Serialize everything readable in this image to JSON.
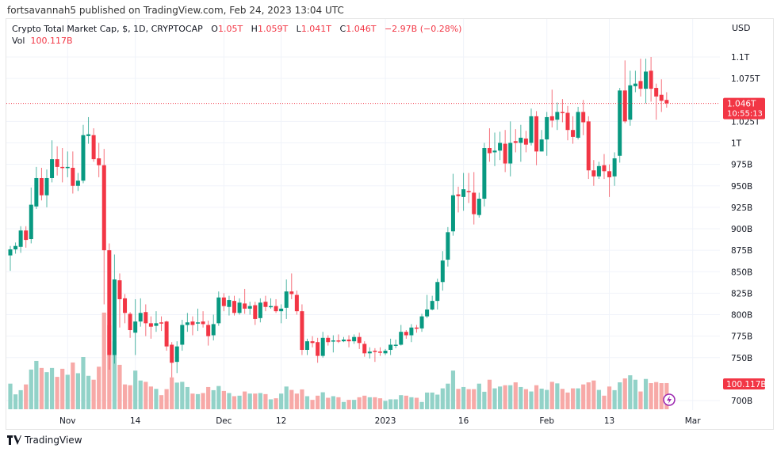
{
  "publisher_line": "fortsavannah5 published on TradingView.com, Feb 24, 2023 13:04 UTC",
  "legend": {
    "symbol": "Crypto Total Market Cap, $, 1D, CRYPTOCAP",
    "o_label": "O",
    "o": "1.05T",
    "h_label": "H",
    "h": "1.059T",
    "l_label": "L",
    "l": "1.041T",
    "c_label": "C",
    "c": "1.046T",
    "change": "−2.97B (−0.28%)",
    "vol_label": "Vol",
    "vol": "100.117B"
  },
  "currency": "USD",
  "last_price_label": "1.046T",
  "countdown": "10:55:13",
  "last_volume_label": "100.117B",
  "footer_brand": "TradingView",
  "colors": {
    "up": "#089981",
    "down": "#f23645",
    "up_vol": "#92d2c8",
    "down_vol": "#f7a9a7",
    "grid": "#f0f3fa"
  },
  "chart_data": {
    "type": "candlestick",
    "interval": "1D",
    "first_date": "2022-10-21",
    "ylabel": "USD",
    "ylim_billions": [
      688,
      1130
    ],
    "y_ticks": [
      {
        "value": 1100,
        "label": "1.1T"
      },
      {
        "value": 1075,
        "label": "1.075T"
      },
      {
        "value": 1025,
        "label": "1.025T"
      },
      {
        "value": 1000,
        "label": "1T"
      },
      {
        "value": 975,
        "label": "975B"
      },
      {
        "value": 950,
        "label": "950B"
      },
      {
        "value": 925,
        "label": "925B"
      },
      {
        "value": 900,
        "label": "900B"
      },
      {
        "value": 875,
        "label": "875B"
      },
      {
        "value": 850,
        "label": "850B"
      },
      {
        "value": 825,
        "label": "825B"
      },
      {
        "value": 800,
        "label": "800B"
      },
      {
        "value": 775,
        "label": "775B"
      },
      {
        "value": 750,
        "label": "750B"
      },
      {
        "value": 700,
        "label": "700B"
      }
    ],
    "x_ticks": [
      {
        "date": "2022-11-01",
        "label": "Nov"
      },
      {
        "date": "2022-11-14",
        "label": "14"
      },
      {
        "date": "2022-12-01",
        "label": "Dec"
      },
      {
        "date": "2022-12-12",
        "label": "12"
      },
      {
        "date": "2023-01-01",
        "label": "2023"
      },
      {
        "date": "2023-01-16",
        "label": "16"
      },
      {
        "date": "2023-02-01",
        "label": "Feb"
      },
      {
        "date": "2023-02-13",
        "label": "13"
      },
      {
        "date": "2023-03-01",
        "label": "Mar"
      }
    ],
    "candle_fields": [
      "open_B",
      "high_B",
      "low_B",
      "close_B",
      "volume_B"
    ],
    "candles": [
      [
        869,
        880,
        851,
        876,
        98
      ],
      [
        876,
        884,
        871,
        880,
        57
      ],
      [
        879,
        903,
        872,
        898,
        73
      ],
      [
        898,
        903,
        878,
        887,
        95
      ],
      [
        888,
        948,
        883,
        928,
        152
      ],
      [
        926,
        972,
        923,
        959,
        185
      ],
      [
        959,
        971,
        933,
        939,
        158
      ],
      [
        939,
        969,
        925,
        959,
        142
      ],
      [
        959,
        1003,
        954,
        981,
        158
      ],
      [
        981,
        996,
        962,
        972,
        124
      ],
      [
        972,
        994,
        954,
        971,
        155
      ],
      [
        971,
        990,
        960,
        972,
        132
      ],
      [
        971,
        990,
        941,
        950,
        179
      ],
      [
        950,
        965,
        944,
        956,
        138
      ],
      [
        956,
        1021,
        953,
        1009,
        200
      ],
      [
        1008,
        1030,
        999,
        1010,
        128
      ],
      [
        1009,
        1017,
        978,
        981,
        113
      ],
      [
        982,
        1000,
        960,
        974,
        163
      ],
      [
        974,
        993,
        812,
        875,
        370
      ],
      [
        875,
        883,
        736,
        753,
        322
      ],
      [
        753,
        870,
        743,
        841,
        260
      ],
      [
        840,
        848,
        785,
        818,
        170
      ],
      [
        819,
        824,
        790,
        802,
        95
      ],
      [
        801,
        803,
        773,
        782,
        92
      ],
      [
        779,
        818,
        753,
        792,
        148
      ],
      [
        792,
        819,
        786,
        802,
        110
      ],
      [
        803,
        812,
        775,
        790,
        105
      ],
      [
        790,
        798,
        772,
        786,
        87
      ],
      [
        787,
        804,
        780,
        790,
        78
      ],
      [
        791,
        798,
        781,
        790,
        54
      ],
      [
        792,
        793,
        758,
        763,
        77
      ],
      [
        765,
        768,
        727,
        744,
        122
      ],
      [
        745,
        769,
        732,
        763,
        102
      ],
      [
        765,
        794,
        758,
        788,
        105
      ],
      [
        788,
        802,
        780,
        791,
        85
      ],
      [
        792,
        798,
        776,
        788,
        60
      ],
      [
        790,
        807,
        781,
        791,
        58
      ],
      [
        792,
        804,
        785,
        789,
        62
      ],
      [
        788,
        793,
        764,
        775,
        85
      ],
      [
        776,
        800,
        770,
        789,
        73
      ],
      [
        790,
        827,
        787,
        820,
        89
      ],
      [
        820,
        825,
        804,
        810,
        70
      ],
      [
        809,
        822,
        799,
        817,
        62
      ],
      [
        816,
        822,
        799,
        802,
        50
      ],
      [
        802,
        819,
        800,
        814,
        52
      ],
      [
        813,
        830,
        801,
        807,
        68
      ],
      [
        807,
        815,
        800,
        810,
        60
      ],
      [
        811,
        815,
        788,
        795,
        60
      ],
      [
        796,
        819,
        791,
        814,
        62
      ],
      [
        815,
        822,
        804,
        809,
        58
      ],
      [
        809,
        819,
        807,
        810,
        38
      ],
      [
        810,
        818,
        802,
        804,
        42
      ],
      [
        804,
        812,
        790,
        807,
        60
      ],
      [
        808,
        841,
        795,
        827,
        87
      ],
      [
        827,
        848,
        818,
        824,
        74
      ],
      [
        823,
        828,
        800,
        804,
        60
      ],
      [
        804,
        812,
        753,
        759,
        76
      ],
      [
        759,
        772,
        753,
        769,
        50
      ],
      [
        769,
        775,
        762,
        767,
        36
      ],
      [
        768,
        773,
        744,
        752,
        52
      ],
      [
        752,
        780,
        750,
        773,
        65
      ],
      [
        773,
        776,
        764,
        768,
        44
      ],
      [
        769,
        776,
        756,
        770,
        50
      ],
      [
        770,
        777,
        767,
        769,
        46
      ],
      [
        769,
        774,
        768,
        771,
        28
      ],
      [
        771,
        776,
        762,
        769,
        36
      ],
      [
        769,
        777,
        766,
        774,
        36
      ],
      [
        774,
        779,
        760,
        767,
        46
      ],
      [
        766,
        769,
        751,
        755,
        52
      ],
      [
        755,
        762,
        749,
        757,
        46
      ],
      [
        758,
        761,
        745,
        757,
        46
      ],
      [
        757,
        762,
        752,
        756,
        42
      ],
      [
        755,
        760,
        753,
        758,
        32
      ],
      [
        759,
        772,
        753,
        765,
        38
      ],
      [
        765,
        771,
        761,
        765,
        38
      ],
      [
        765,
        788,
        764,
        780,
        54
      ],
      [
        780,
        782,
        772,
        776,
        52
      ],
      [
        776,
        789,
        768,
        785,
        46
      ],
      [
        785,
        788,
        779,
        784,
        44
      ],
      [
        784,
        801,
        780,
        798,
        28
      ],
      [
        798,
        823,
        796,
        806,
        64
      ],
      [
        806,
        822,
        805,
        816,
        64
      ],
      [
        816,
        842,
        806,
        838,
        56
      ],
      [
        838,
        874,
        828,
        863,
        80
      ],
      [
        864,
        902,
        856,
        896,
        98
      ],
      [
        897,
        964,
        892,
        939,
        148
      ],
      [
        940,
        949,
        919,
        938,
        78
      ],
      [
        937,
        965,
        921,
        946,
        85
      ],
      [
        944,
        965,
        930,
        943,
        77
      ],
      [
        942,
        966,
        905,
        917,
        77
      ],
      [
        916,
        942,
        913,
        935,
        98
      ],
      [
        935,
        1000,
        926,
        994,
        67
      ],
      [
        994,
        1017,
        978,
        988,
        113
      ],
      [
        989,
        1012,
        973,
        991,
        80
      ],
      [
        991,
        1013,
        980,
        1000,
        87
      ],
      [
        999,
        1015,
        966,
        976,
        92
      ],
      [
        976,
        1025,
        961,
        1000,
        92
      ],
      [
        1002,
        1016,
        989,
        1000,
        103
      ],
      [
        1000,
        1021,
        978,
        1006,
        85
      ],
      [
        1005,
        1014,
        989,
        998,
        77
      ],
      [
        1000,
        1040,
        997,
        1031,
        68
      ],
      [
        1031,
        1037,
        974,
        990,
        92
      ],
      [
        990,
        1015,
        990,
        1004,
        79
      ],
      [
        1004,
        1036,
        985,
        1030,
        74
      ],
      [
        1031,
        1062,
        1018,
        1026,
        105
      ],
      [
        1027,
        1047,
        1015,
        1036,
        99
      ],
      [
        1036,
        1051,
        1024,
        1035,
        78
      ],
      [
        1035,
        1043,
        1003,
        1015,
        64
      ],
      [
        1015,
        1031,
        999,
        1007,
        80
      ],
      [
        1006,
        1042,
        1004,
        1036,
        80
      ],
      [
        1036,
        1050,
        1009,
        1024,
        95
      ],
      [
        1025,
        1031,
        958,
        968,
        103
      ],
      [
        968,
        980,
        950,
        961,
        110
      ],
      [
        961,
        978,
        958,
        973,
        74
      ],
      [
        974,
        987,
        958,
        967,
        52
      ],
      [
        967,
        975,
        937,
        960,
        87
      ],
      [
        961,
        989,
        950,
        982,
        73
      ],
      [
        985,
        1064,
        977,
        1061,
        103
      ],
      [
        1061,
        1096,
        1023,
        1025,
        118
      ],
      [
        1027,
        1084,
        1020,
        1067,
        130
      ],
      [
        1066,
        1084,
        1059,
        1069,
        113
      ],
      [
        1072,
        1098,
        1054,
        1063,
        68
      ],
      [
        1063,
        1098,
        1046,
        1083,
        116
      ],
      [
        1084,
        1100,
        1048,
        1063,
        100
      ],
      [
        1064,
        1069,
        1027,
        1054,
        104
      ],
      [
        1056,
        1074,
        1036,
        1049,
        100
      ],
      [
        1050,
        1059,
        1041,
        1046,
        100.117
      ]
    ]
  }
}
